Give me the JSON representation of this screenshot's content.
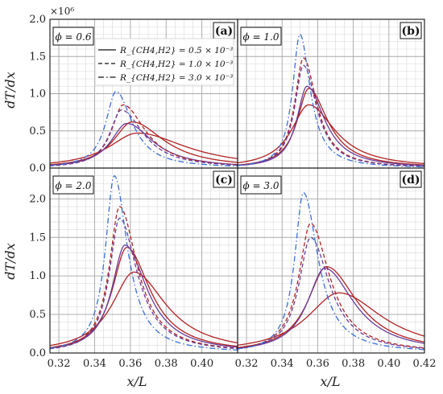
{
  "chart_data": {
    "type": "line",
    "multiplier_label": "×10⁶",
    "xlabel": "x/L",
    "ylabel": "dT/dx",
    "xlim": [
      0.315,
      0.42
    ],
    "ylim_top": [
      0,
      2.0
    ],
    "ylim_bottom": [
      0,
      2.4
    ],
    "x_ticks_bottom": [
      "0.32",
      "0.34",
      "0.36",
      "0.38",
      "0.40",
      "0.32",
      "0.34",
      "0.36",
      "0.38",
      "0.40",
      "0.42"
    ],
    "y_ticks_top": [
      "0.0",
      "0.5",
      "1.0",
      "1.5",
      "2.0"
    ],
    "y_ticks_bottom": [
      "0.0",
      "0.5",
      "1.0",
      "1.5",
      "2.0"
    ],
    "legend": [
      {
        "label": "R_{CH4,H2} = 0.5 × 10⁻³",
        "style": "solid"
      },
      {
        "label": "R_{CH4,H2} = 1.0 × 10⁻³",
        "style": "dashed"
      },
      {
        "label": "R_{CH4,H2} = 3.0 × 10⁻³",
        "style": "dashdot"
      }
    ],
    "colors": {
      "red": "#b22222",
      "purple": "#6a3d9a",
      "blue": "#3b6fd8",
      "dark_red": "#8b1a1a"
    },
    "panels": [
      {
        "tag": "(a)",
        "phi": "ϕ = 0.6",
        "curves": [
          {
            "color": "#b22222",
            "style": "solid",
            "peak_x": 0.364,
            "peak_y": 0.47,
            "sigma_l": 0.02,
            "sigma_r": 0.034
          },
          {
            "color": "#b22222",
            "style": "solid",
            "peak_x": 0.361,
            "peak_y": 0.62,
            "sigma_l": 0.013,
            "sigma_r": 0.022
          },
          {
            "color": "#6a3d9a",
            "style": "solid",
            "peak_x": 0.358,
            "peak_y": 0.6,
            "sigma_l": 0.011,
            "sigma_r": 0.018
          },
          {
            "color": "#b22222",
            "style": "dashed",
            "peak_x": 0.356,
            "peak_y": 0.85,
            "sigma_l": 0.008,
            "sigma_r": 0.015
          },
          {
            "color": "#6a3d9a",
            "style": "dashed",
            "peak_x": 0.355,
            "peak_y": 0.78,
            "sigma_l": 0.008,
            "sigma_r": 0.015
          },
          {
            "color": "#3b6fd8",
            "style": "dashdot",
            "peak_x": 0.352,
            "peak_y": 1.03,
            "sigma_l": 0.007,
            "sigma_r": 0.011
          }
        ]
      },
      {
        "tag": "(b)",
        "phi": "ϕ = 1.0",
        "curves": [
          {
            "color": "#b22222",
            "style": "solid",
            "peak_x": 0.355,
            "peak_y": 0.85,
            "sigma_l": 0.012,
            "sigma_r": 0.018
          },
          {
            "color": "#b22222",
            "style": "solid",
            "peak_x": 0.355,
            "peak_y": 1.07,
            "sigma_l": 0.008,
            "sigma_r": 0.013
          },
          {
            "color": "#6a3d9a",
            "style": "solid",
            "peak_x": 0.354,
            "peak_y": 1.1,
            "sigma_l": 0.007,
            "sigma_r": 0.012
          },
          {
            "color": "#b22222",
            "style": "dashed",
            "peak_x": 0.352,
            "peak_y": 1.48,
            "sigma_l": 0.006,
            "sigma_r": 0.009
          },
          {
            "color": "#6a3d9a",
            "style": "dashed",
            "peak_x": 0.352,
            "peak_y": 1.38,
            "sigma_l": 0.006,
            "sigma_r": 0.009
          },
          {
            "color": "#3b6fd8",
            "style": "dashdot",
            "peak_x": 0.35,
            "peak_y": 1.8,
            "sigma_l": 0.005,
            "sigma_r": 0.007
          }
        ]
      },
      {
        "tag": "(c)",
        "phi": "ϕ = 2.0",
        "curves": [
          {
            "color": "#b22222",
            "style": "solid",
            "peak_x": 0.362,
            "peak_y": 1.05,
            "sigma_l": 0.015,
            "sigma_r": 0.022
          },
          {
            "color": "#b22222",
            "style": "solid",
            "peak_x": 0.358,
            "peak_y": 1.37,
            "sigma_l": 0.01,
            "sigma_r": 0.016
          },
          {
            "color": "#6a3d9a",
            "style": "solid",
            "peak_x": 0.357,
            "peak_y": 1.4,
            "sigma_l": 0.009,
            "sigma_r": 0.015
          },
          {
            "color": "#b22222",
            "style": "dashed",
            "peak_x": 0.354,
            "peak_y": 1.9,
            "sigma_l": 0.007,
            "sigma_r": 0.012
          },
          {
            "color": "#6a3d9a",
            "style": "dashed",
            "peak_x": 0.354,
            "peak_y": 1.75,
            "sigma_l": 0.007,
            "sigma_r": 0.012
          },
          {
            "color": "#3b6fd8",
            "style": "dashdot",
            "peak_x": 0.351,
            "peak_y": 2.3,
            "sigma_l": 0.006,
            "sigma_r": 0.009
          }
        ]
      },
      {
        "tag": "(d)",
        "phi": "ϕ = 3.0",
        "curves": [
          {
            "color": "#b22222",
            "style": "solid",
            "peak_x": 0.372,
            "peak_y": 0.78,
            "sigma_l": 0.022,
            "sigma_r": 0.03
          },
          {
            "color": "#b22222",
            "style": "solid",
            "peak_x": 0.365,
            "peak_y": 1.12,
            "sigma_l": 0.013,
            "sigma_r": 0.021
          },
          {
            "color": "#6a3d9a",
            "style": "solid",
            "peak_x": 0.364,
            "peak_y": 1.1,
            "sigma_l": 0.012,
            "sigma_r": 0.02
          },
          {
            "color": "#b22222",
            "style": "dashed",
            "peak_x": 0.356,
            "peak_y": 1.68,
            "sigma_l": 0.008,
            "sigma_r": 0.013
          },
          {
            "color": "#6a3d9a",
            "style": "dashed",
            "peak_x": 0.356,
            "peak_y": 1.5,
            "sigma_l": 0.008,
            "sigma_r": 0.013
          },
          {
            "color": "#3b6fd8",
            "style": "dashdot",
            "peak_x": 0.352,
            "peak_y": 2.08,
            "sigma_l": 0.006,
            "sigma_r": 0.01
          }
        ]
      }
    ]
  }
}
